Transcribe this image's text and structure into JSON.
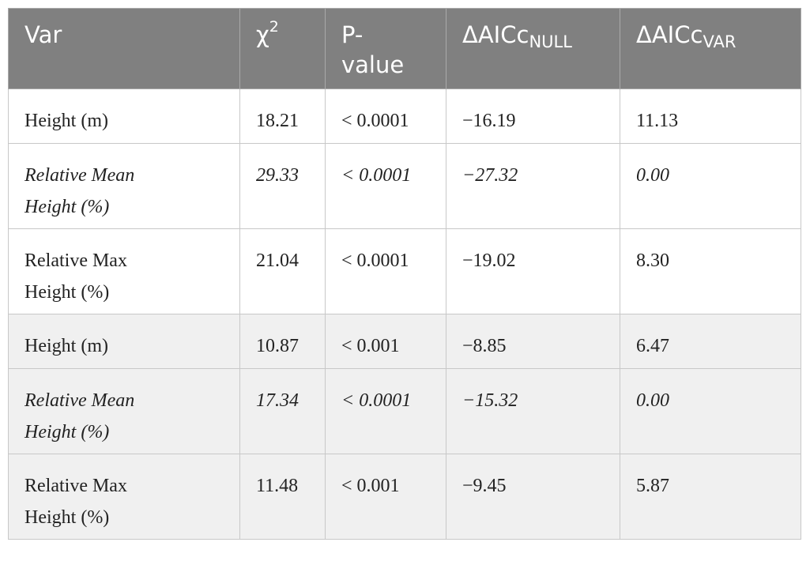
{
  "table": {
    "header": [
      {
        "text": "Var"
      },
      {
        "text": "χ",
        "sup": "2"
      },
      {
        "text": "P-value"
      },
      {
        "text": "ΔAICc",
        "sub": "NULL"
      },
      {
        "text": "ΔAICc",
        "sub": "VAR"
      }
    ],
    "rows": [
      {
        "cells": [
          "Height (m)",
          "18.21",
          "< 0.0001",
          "−16.19",
          "11.13"
        ],
        "italic": false,
        "shaded": false
      },
      {
        "cells": [
          "Relative Mean Height (%)",
          "29.33",
          "< 0.0001",
          "−27.32",
          "0.00"
        ],
        "italic": true,
        "shaded": false
      },
      {
        "cells": [
          "Relative Max Height (%)",
          "21.04",
          "< 0.0001",
          "−19.02",
          "8.30"
        ],
        "italic": false,
        "shaded": false
      },
      {
        "cells": [
          "Height (m)",
          "10.87",
          "< 0.001",
          "−8.85",
          "6.47"
        ],
        "italic": false,
        "shaded": true
      },
      {
        "cells": [
          "Relative Mean Height (%)",
          "17.34",
          "< 0.0001",
          "−15.32",
          "0.00"
        ],
        "italic": true,
        "shaded": true
      },
      {
        "cells": [
          "Relative Max Height (%)",
          "11.48",
          "< 0.001",
          "−9.45",
          "5.87"
        ],
        "italic": false,
        "shaded": true
      }
    ]
  }
}
